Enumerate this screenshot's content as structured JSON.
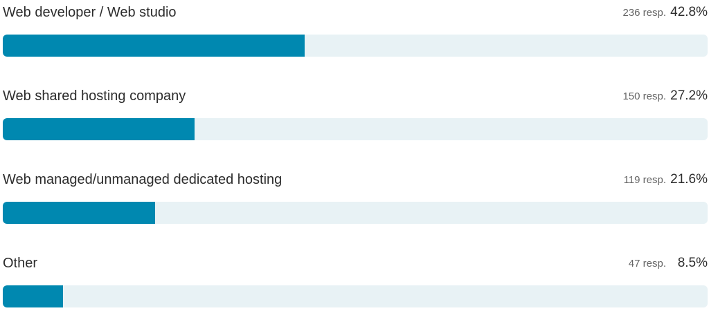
{
  "chart_data": {
    "type": "bar",
    "orientation": "horizontal",
    "categories": [
      "Web developer / Web studio",
      "Web shared hosting company",
      "Web managed/unmanaged dedicated hosting",
      "Other"
    ],
    "values": [
      42.8,
      27.2,
      21.6,
      8.5
    ],
    "counts": [
      "236 resp.",
      "150 resp.",
      "119 resp.",
      "47 resp."
    ],
    "percent_labels": [
      "42.8%",
      "27.2%",
      "21.6%",
      "8.5%"
    ],
    "xlim": [
      0,
      100
    ],
    "grid": false,
    "colors": {
      "bar": "#0088b0",
      "track": "#e8f2f5"
    }
  }
}
